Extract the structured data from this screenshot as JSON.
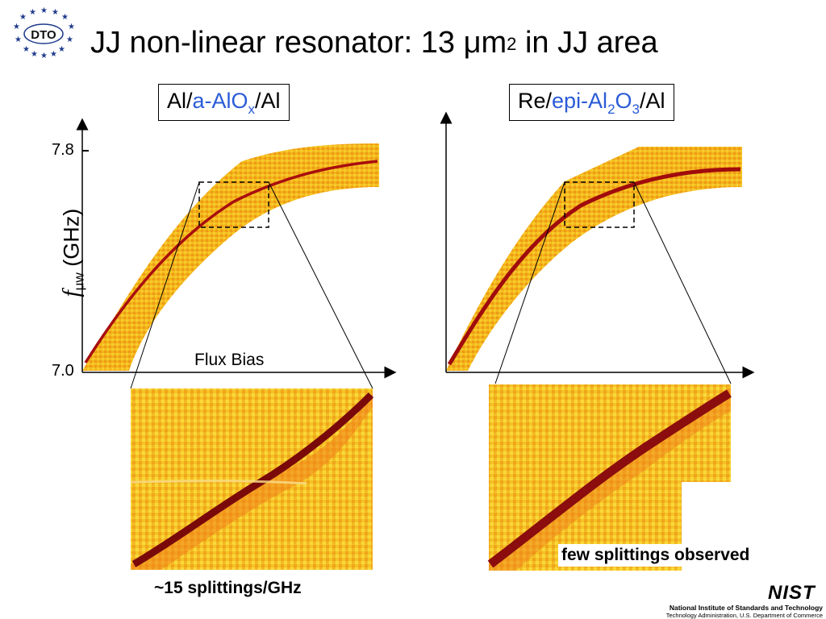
{
  "title": {
    "main": "JJ non-linear resonator: 13 μm",
    "sup": "2",
    "tail": " in JJ area"
  },
  "logo": {
    "text": "DTO"
  },
  "left_panel": {
    "label_pre": "Al/",
    "label_blue": "a-AlO",
    "label_sub": "x",
    "label_post": "/Al"
  },
  "right_panel": {
    "label_pre": "Re/",
    "label_blue": "epi-Al",
    "label_sub1": "2",
    "label_mid": "O",
    "label_sub2": "3",
    "label_post": "/Al"
  },
  "axes": {
    "y_tick_top": "7.8",
    "y_tick_bottom": "7.0",
    "y_label_var": "f",
    "y_label_sub": "μw",
    "y_label_unit": "(GHz)",
    "x_label": "Flux Bias"
  },
  "captions": {
    "left": "~15 splittings/GHz",
    "right": "few splittings observed"
  },
  "footer": {
    "wordmark": "NIST",
    "name": "National Institute of Standards and Technology",
    "dept": "Technology Administration, U.S. Department of Commerce"
  },
  "colors": {
    "accent": "#2a5bd7",
    "data_low": "#f6c21f",
    "data_high": "#8b0000",
    "logo_blue": "#1f3b8c"
  }
}
